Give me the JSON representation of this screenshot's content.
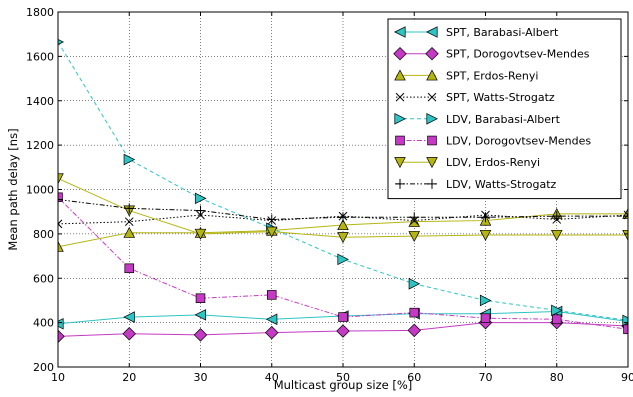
{
  "chart_data": {
    "type": "line",
    "title": "",
    "xlabel": "Multicast group size [%]",
    "ylabel": "Mean path delay [ns]",
    "xlim": [
      10,
      90
    ],
    "ylim": [
      200,
      1800
    ],
    "xticks": [
      10,
      20,
      30,
      40,
      50,
      60,
      70,
      80,
      90
    ],
    "yticks": [
      200,
      400,
      600,
      800,
      1000,
      1200,
      1400,
      1600,
      1800
    ],
    "grid": true,
    "legend_position": "top-right",
    "x": [
      10,
      20,
      30,
      40,
      50,
      60,
      70,
      80,
      90
    ],
    "series": [
      {
        "name": "SPT, Barabasi-Albert",
        "marker": "triangle-left",
        "color": "#2ec4c4",
        "line": "solid",
        "values": [
          395,
          425,
          435,
          415,
          430,
          440,
          440,
          450,
          405
        ]
      },
      {
        "name": "SPT, Dorogovtsev-Mendes",
        "marker": "diamond",
        "color": "#c43ac4",
        "line": "solid",
        "values": [
          338,
          350,
          345,
          355,
          362,
          365,
          400,
          400,
          385
        ]
      },
      {
        "name": "SPT, Erdos-Renyi",
        "marker": "triangle-up",
        "color": "#b5b512",
        "line": "solid",
        "values": [
          742,
          805,
          805,
          815,
          840,
          855,
          860,
          890,
          890
        ]
      },
      {
        "name": "SPT, Watts-Strogatz",
        "marker": "x",
        "color": "#000000",
        "line": "dotted",
        "values": [
          845,
          855,
          885,
          860,
          880,
          860,
          885,
          865,
          885
        ]
      },
      {
        "name": "LDV, Barabasi-Albert",
        "marker": "triangle-right",
        "color": "#2ec4c4",
        "line": "dashed",
        "values": [
          1665,
          1135,
          960,
          825,
          685,
          575,
          500,
          455,
          410
        ]
      },
      {
        "name": "LDV, Dorogovtsev-Mendes",
        "marker": "square",
        "color": "#c43ac4",
        "line": "dashdot",
        "values": [
          965,
          645,
          510,
          525,
          425,
          445,
          420,
          415,
          370
        ]
      },
      {
        "name": "LDV, Erdos-Renyi",
        "marker": "triangle-down",
        "color": "#b5b512",
        "line": "solid",
        "values": [
          1050,
          905,
          800,
          810,
          785,
          790,
          795,
          795,
          795
        ]
      },
      {
        "name": "LDV, Watts-Strogatz",
        "marker": "plus",
        "color": "#000000",
        "line": "dashdotdot",
        "values": [
          955,
          915,
          905,
          865,
          875,
          875,
          875,
          880,
          880
        ]
      }
    ]
  }
}
